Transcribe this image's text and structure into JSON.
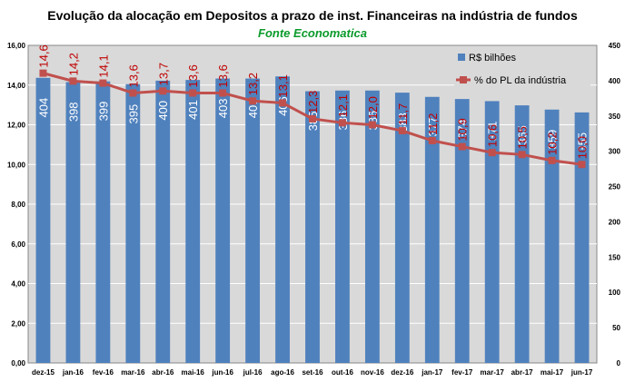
{
  "chart_data": {
    "type": "bar",
    "title": "Evolução da alocação  em Depositos  a prazo de inst. Financeiras na indústria  de fundos",
    "subtitle": "Fonte Economatica",
    "categories": [
      "dez-15",
      "jan-16",
      "fev-16",
      "mar-16",
      "abr-16",
      "mai-16",
      "jun-16",
      "jul-16",
      "ago-16",
      "set-16",
      "out-16",
      "nov-16",
      "dez-16",
      "jan-17",
      "fev-17",
      "mar-17",
      "abr-17",
      "mai-17",
      "jun-17"
    ],
    "series": [
      {
        "name": "R$ bilhões",
        "axis": "right",
        "type": "bar",
        "color": "#4f81bd",
        "values": [
          404,
          398,
          399,
          395,
          400,
          401,
          403,
          403,
          406,
          385,
          386,
          386,
          383,
          377,
          374,
          371,
          365,
          359,
          355
        ]
      },
      {
        "name": "% do PL da indústria",
        "axis": "left",
        "type": "line",
        "color": "#c0504d",
        "label_color": "#c00000",
        "values": [
          14.6,
          14.2,
          14.1,
          13.6,
          13.7,
          13.6,
          13.6,
          13.2,
          13.1,
          12.3,
          12.1,
          12.0,
          11.7,
          11.2,
          10.9,
          10.6,
          10.5,
          10.2,
          10.0
        ],
        "labels": [
          "14,6",
          "14,2",
          "14,1",
          "13,6",
          "13,7",
          "13,6",
          "13,6",
          "13,2",
          "13,1",
          "12,3",
          "12,1",
          "12,0",
          "11,7",
          "11,2",
          "10,9",
          "10,6",
          "10,5",
          "10,2",
          "10,0"
        ]
      }
    ],
    "y_left": {
      "min": 0,
      "max": 16,
      "step": 2,
      "ticks": [
        "0,00",
        "2,00",
        "4,00",
        "6,00",
        "8,00",
        "10,00",
        "12,00",
        "14,00",
        "16,00"
      ]
    },
    "y_right": {
      "min": 0,
      "max": 450,
      "step": 50,
      "ticks": [
        "0",
        "50",
        "100",
        "150",
        "200",
        "250",
        "300",
        "350",
        "400",
        "450"
      ]
    },
    "grid": true,
    "legend": "top-right",
    "plot_background": "#d9d9d9"
  }
}
